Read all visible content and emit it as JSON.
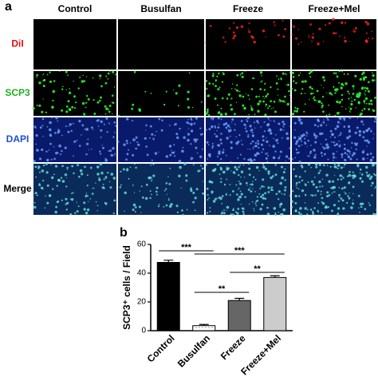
{
  "panel_a": {
    "label": "a",
    "columns": [
      "Control",
      "Busulfan",
      "Freeze",
      "Freeze+Mel"
    ],
    "rows": [
      {
        "label": "DiI",
        "color": "#e01010"
      },
      {
        "label": "SCP3",
        "color": "#20b020"
      },
      {
        "label": "DAPI",
        "color": "#2050d0"
      },
      {
        "label": "Merge",
        "color": "#000000"
      }
    ]
  },
  "panel_b": {
    "label": "b"
  },
  "chart_data": {
    "type": "bar",
    "ylabel": "SCP3⁺ cells / Field",
    "categories": [
      "Control",
      "Busulfan",
      "Freeze",
      "Freeze+Mel"
    ],
    "values": [
      47.5,
      3.5,
      21,
      37
    ],
    "errors": [
      1.5,
      0.8,
      1.5,
      1.2
    ],
    "colors": [
      "#000000",
      "#ffffff",
      "#666666",
      "#cccccc"
    ],
    "ylim": [
      0,
      60
    ],
    "yticks": [
      0,
      20,
      40,
      60
    ],
    "annotations": [
      {
        "text": "***",
        "from": 0,
        "to": 1
      },
      {
        "text": "***",
        "from": 1,
        "to": 3
      },
      {
        "text": "**",
        "from": 1,
        "to": 2
      },
      {
        "text": "**",
        "from": 2,
        "to": 3
      }
    ]
  }
}
